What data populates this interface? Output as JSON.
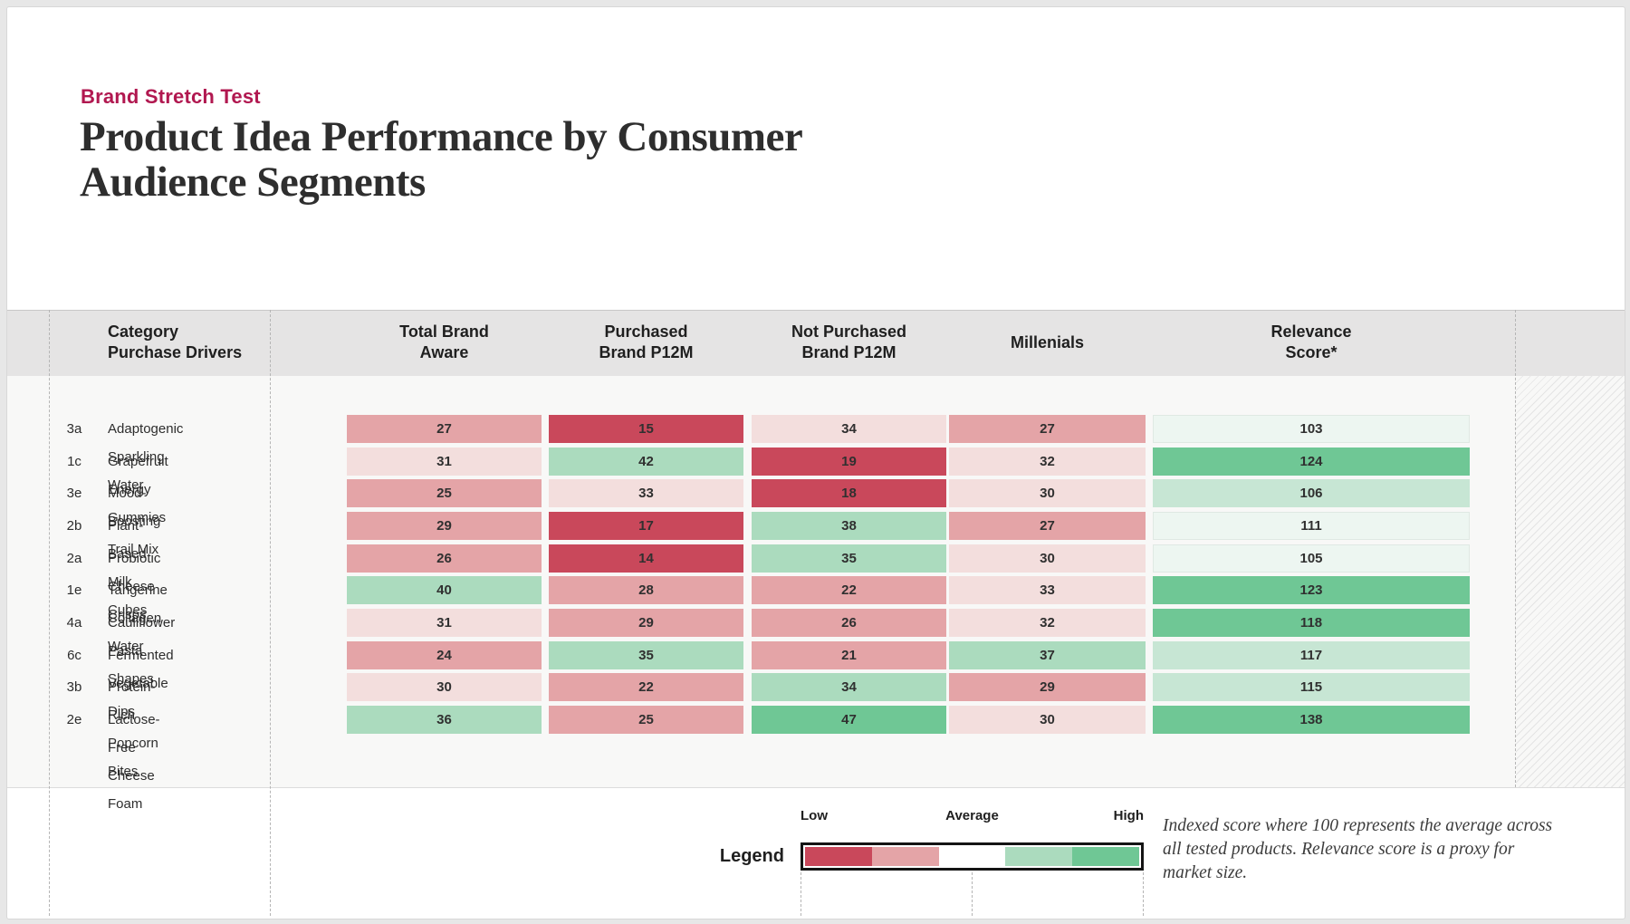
{
  "palette": {
    "dark_red": "#c9485b",
    "pink": "#e4a4a7",
    "light_pink": "#f3dedd",
    "light_green": "#abdbbe",
    "green": "#6fc795",
    "rel_light": "#c7e6d4",
    "rel_faint": "#edf6f1",
    "white": "#ffffff",
    "eyebrow_accent": "#b11850",
    "band_gray": "#e5e4e4"
  },
  "header": {
    "eyebrow": "Brand Stretch Test",
    "title_line1": "Product Idea Performance by Consumer",
    "title_line2": "Audience Segments"
  },
  "chart_data": {
    "type": "heatmap",
    "title": "Product Idea Performance by Consumer Audience Segments",
    "subtitle": "Brand Stretch Test",
    "columns": [
      {
        "line1": "Category",
        "line2": "Purchase Drivers"
      },
      {
        "line1": "Total Brand",
        "line2": "Aware"
      },
      {
        "line1": "Purchased",
        "line2": "Brand P12M"
      },
      {
        "line1": "Not Purchased",
        "line2": "Brand P12M"
      },
      {
        "line1": "Millenials",
        "line2": ""
      },
      {
        "line1": "Relevance",
        "line2": "Score*"
      }
    ],
    "rows": [
      {
        "code": "3a",
        "label": "Adaptogenic Sparkling Water",
        "values": [
          27,
          15,
          34,
          27,
          103
        ],
        "tones": [
          "pink",
          "dark_red",
          "light_pink",
          "pink",
          "rel_faint"
        ]
      },
      {
        "code": "1c",
        "label": "Grapefruit Energy Gummies",
        "values": [
          31,
          42,
          19,
          32,
          124
        ],
        "tones": [
          "light_pink",
          "light_green",
          "dark_red",
          "light_pink",
          "green"
        ]
      },
      {
        "code": "3e",
        "label": "Mood-Boosting Trail Mix",
        "values": [
          25,
          33,
          18,
          30,
          106
        ],
        "tones": [
          "pink",
          "light_pink",
          "dark_red",
          "light_pink",
          "rel_light"
        ]
      },
      {
        "code": "2b",
        "label": "Plant-Based Milk Cubes",
        "values": [
          29,
          17,
          38,
          27,
          111
        ],
        "tones": [
          "pink",
          "dark_red",
          "light_green",
          "pink",
          "rel_faint"
        ]
      },
      {
        "code": "2a",
        "label": "Probiotic Cheese Crisps",
        "values": [
          26,
          14,
          35,
          30,
          105
        ],
        "tones": [
          "pink",
          "dark_red",
          "light_green",
          "light_pink",
          "rel_faint"
        ]
      },
      {
        "code": "1e",
        "label": "Tangerine Collagen Water",
        "values": [
          40,
          28,
          22,
          33,
          123
        ],
        "tones": [
          "light_green",
          "pink",
          "pink",
          "light_pink",
          "green"
        ]
      },
      {
        "code": "4a",
        "label": "Cauliflower Pasta Shapes",
        "values": [
          31,
          29,
          26,
          32,
          118
        ],
        "tones": [
          "light_pink",
          "pink",
          "pink",
          "light_pink",
          "green"
        ]
      },
      {
        "code": "6c",
        "label": "Fermented Vegetable Dips",
        "values": [
          24,
          35,
          21,
          37,
          117
        ],
        "tones": [
          "pink",
          "light_green",
          "pink",
          "light_green",
          "rel_light"
        ]
      },
      {
        "code": "3b",
        "label": "Protein-Rich Popcorn Bites",
        "values": [
          30,
          22,
          34,
          29,
          115
        ],
        "tones": [
          "light_pink",
          "pink",
          "light_green",
          "pink",
          "rel_light"
        ]
      },
      {
        "code": "2e",
        "label": "Lactose-Free Cheese Foam",
        "values": [
          36,
          25,
          47,
          30,
          138
        ],
        "tones": [
          "light_green",
          "pink",
          "green",
          "light_pink",
          "green"
        ]
      }
    ],
    "legend": {
      "label": "Legend",
      "low": "Low",
      "average": "Average",
      "high": "High",
      "swatch_tones": [
        "dark_red",
        "pink",
        "white",
        "light_green",
        "green"
      ]
    },
    "footnote": "Indexed score where 100 represents the average across all tested products. Relevance score is a proxy for market size."
  }
}
